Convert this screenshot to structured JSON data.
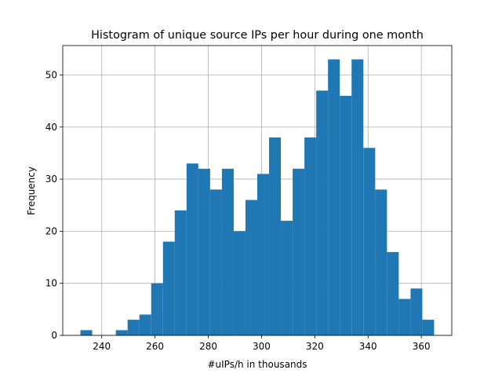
{
  "chart_data": {
    "type": "histogram",
    "title": "Histogram of unique source IPs per hour during one month",
    "x_label": "#uIPs/h in thousands",
    "y_label": "Frequency",
    "bins": [
      232.0,
      236.43,
      240.85,
      245.28,
      249.71,
      254.13,
      258.56,
      262.99,
      267.41,
      271.84,
      276.27,
      280.69,
      285.12,
      289.55,
      293.97,
      298.4,
      302.83,
      307.25,
      311.68,
      316.11,
      320.53,
      324.96,
      329.39,
      333.81,
      338.24,
      342.67,
      347.09,
      351.52,
      355.95,
      360.37,
      364.8
    ],
    "values": [
      1,
      0,
      0,
      1,
      3,
      4,
      10,
      18,
      24,
      33,
      32,
      28,
      32,
      20,
      26,
      31,
      38,
      22,
      32,
      38,
      47,
      53,
      46,
      53,
      36,
      28,
      16,
      7,
      9,
      3
    ],
    "color": "#1f77b4",
    "xlim": [
      225.36,
      371.44
    ],
    "xticks": [
      240,
      260,
      280,
      300,
      320,
      340,
      360
    ],
    "ylim": [
      0,
      55.65
    ],
    "yticks": [
      0,
      10,
      20,
      30,
      40,
      50
    ],
    "grid": true
  }
}
